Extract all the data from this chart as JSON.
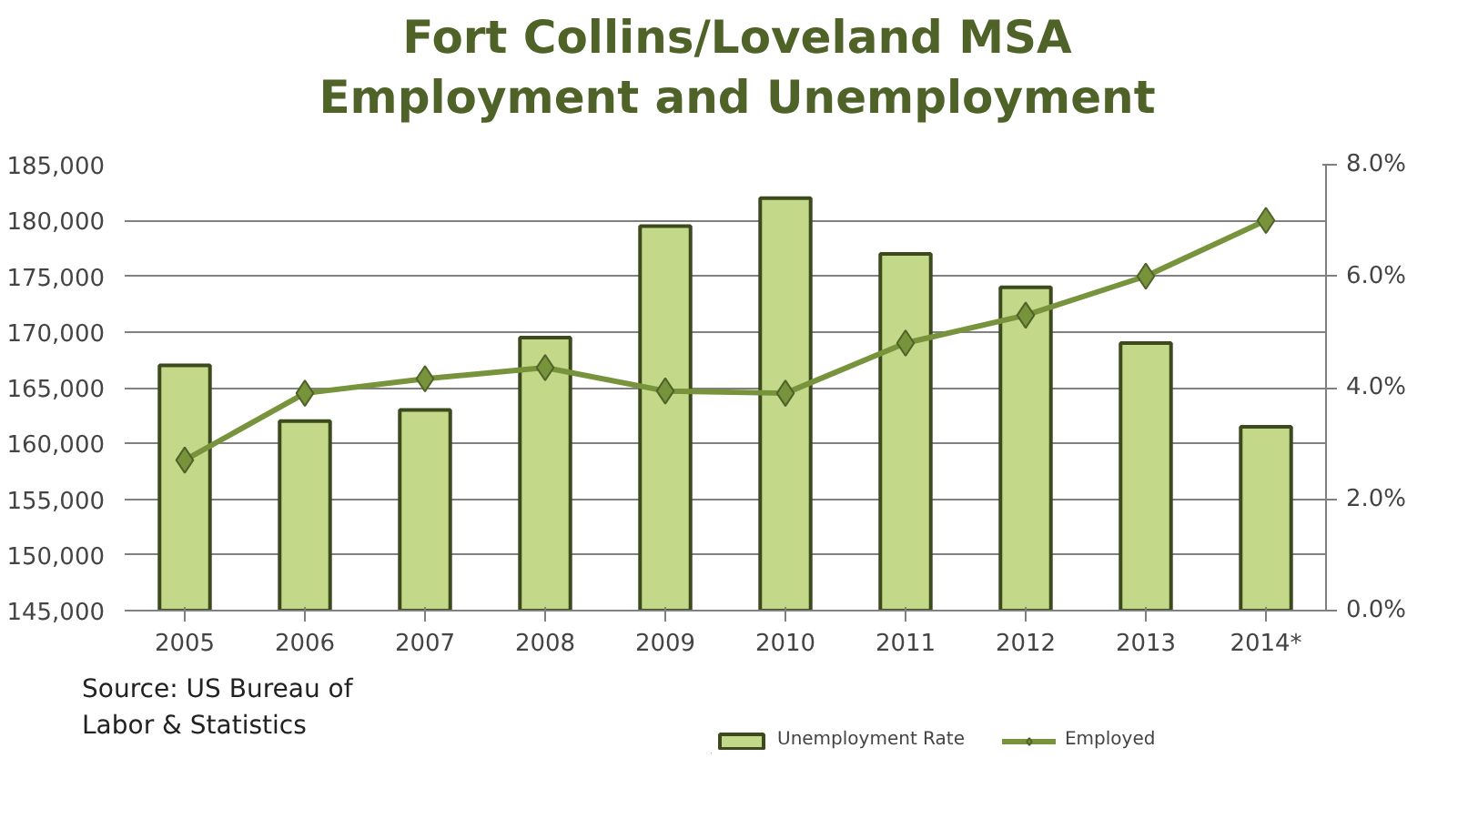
{
  "chart_data": {
    "type": "bar",
    "title": "Fort Collins/Loveland MSA\nEmployment and Unemployment",
    "categories": [
      "2005",
      "2006",
      "2007",
      "2008",
      "2009",
      "2010",
      "2011",
      "2012",
      "2013",
      "2014*"
    ],
    "series": [
      {
        "name": "Unemployment Rate",
        "axis": "y2",
        "color": "#c4d88a",
        "values": [
          4.4,
          3.4,
          3.6,
          4.9,
          6.9,
          7.4,
          6.4,
          5.8,
          4.8,
          3.3
        ]
      },
      {
        "name": "Employed",
        "type": "line",
        "axis": "y",
        "color": "#77933c",
        "marker": "diamond",
        "values": [
          158500,
          164500,
          165800,
          166800,
          164700,
          164500,
          169000,
          171500,
          175000,
          180000
        ]
      }
    ],
    "ylim": [
      145000,
      185000
    ],
    "yticks": [
      {
        "value": 145000,
        "label": "145,000"
      },
      {
        "value": 150000,
        "label": "150,000"
      },
      {
        "value": 155000,
        "label": "155,000"
      },
      {
        "value": 160000,
        "label": "160,000"
      },
      {
        "value": 165000,
        "label": "165,000"
      },
      {
        "value": 170000,
        "label": "170,000"
      },
      {
        "value": 175000,
        "label": "175,000"
      },
      {
        "value": 180000,
        "label": "180,000"
      },
      {
        "value": 185000,
        "label": "185,000"
      }
    ],
    "y2lim": [
      0,
      8
    ],
    "y2ticks": [
      {
        "value": 0,
        "label": "0.0%"
      },
      {
        "value": 2,
        "label": "2.0%"
      },
      {
        "value": 4,
        "label": "4.0%"
      },
      {
        "value": 6,
        "label": "6.0%"
      },
      {
        "value": 8,
        "label": "8.0%"
      }
    ],
    "grid": "y",
    "legend": "bottom",
    "annotations": [
      "Source:  US Bureau of\nLabor & Statistics"
    ]
  }
}
